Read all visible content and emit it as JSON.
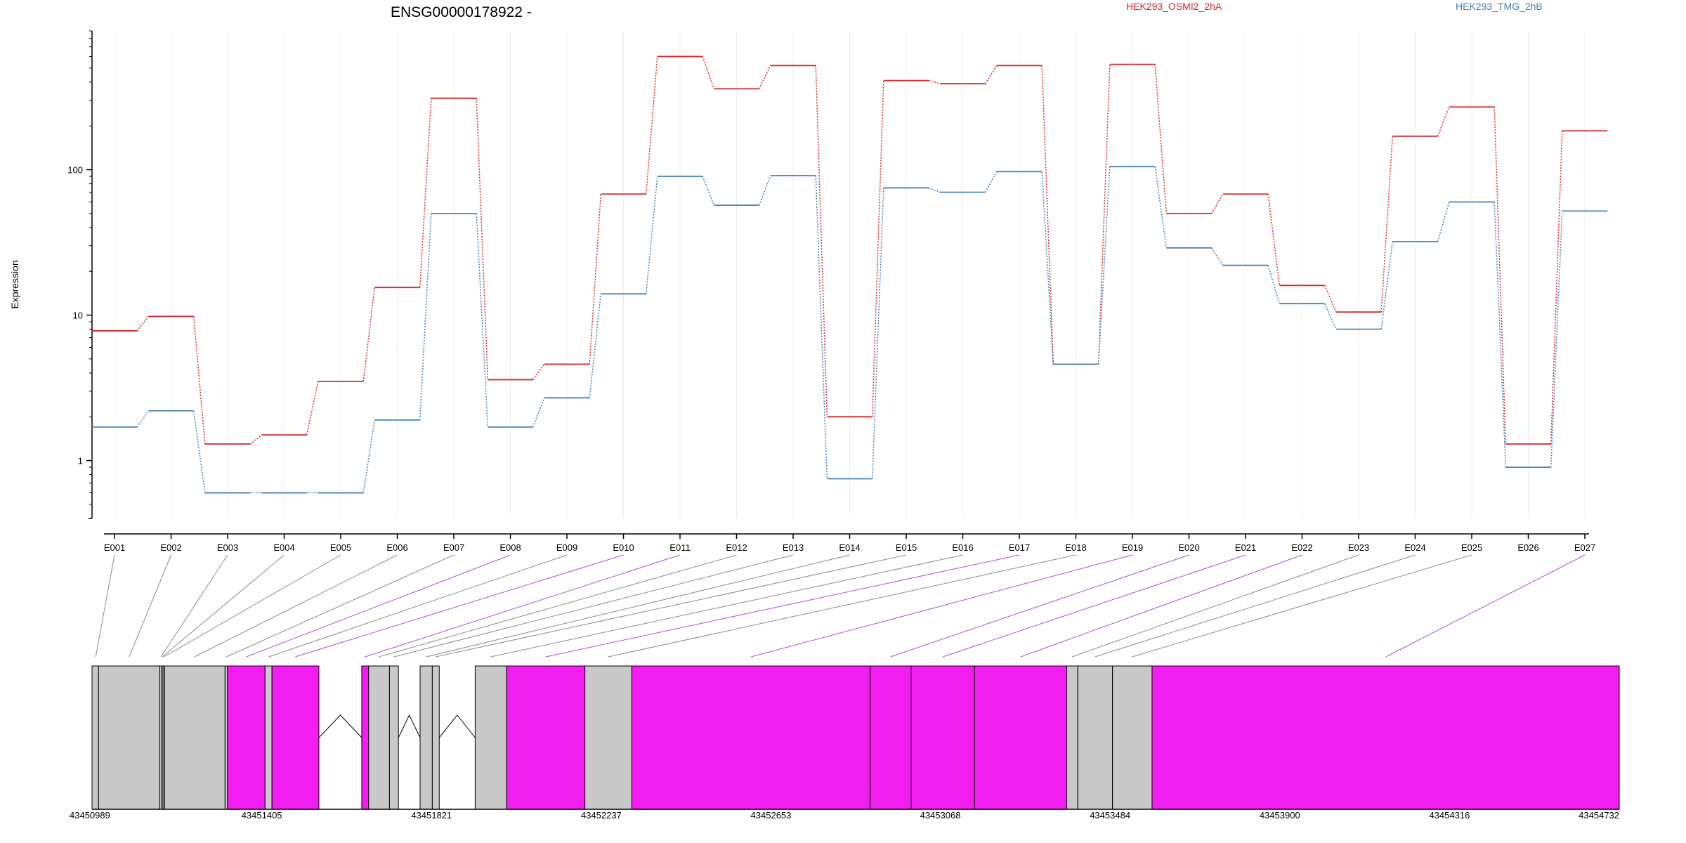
{
  "chart_data": {
    "type": "line",
    "title": "ENSG00000178922 -",
    "ylabel": "Expression",
    "yscale": "log",
    "ylim": [
      0.4,
      900
    ],
    "yticks": [
      1,
      10,
      100
    ],
    "ytick_labels": [
      "1",
      "10",
      "100"
    ],
    "grid": "vertical",
    "categories": [
      "E001",
      "E002",
      "E003",
      "E004",
      "E005",
      "E006",
      "E007",
      "E008",
      "E009",
      "E010",
      "E011",
      "E012",
      "E013",
      "E014",
      "E015",
      "E016",
      "E017",
      "E018",
      "E019",
      "E020",
      "E021",
      "E022",
      "E023",
      "E024",
      "E025",
      "E026",
      "E027"
    ],
    "series": [
      {
        "name": "HEK293_OSMI2_2hA",
        "color": "#d62728",
        "values": [
          7.8,
          9.8,
          1.3,
          1.5,
          3.5,
          15.5,
          310,
          3.6,
          4.6,
          68,
          600,
          360,
          520,
          2.0,
          410,
          390,
          520,
          4.6,
          530,
          50,
          68,
          16,
          10.5,
          170,
          270,
          1.3,
          185
        ]
      },
      {
        "name": "HEK293_TMG_2hB",
        "color": "#4682b4",
        "values": [
          1.7,
          2.2,
          0.6,
          0.6,
          0.6,
          1.9,
          50,
          1.7,
          2.7,
          14,
          90,
          57,
          91,
          0.75,
          75,
          70,
          97,
          4.6,
          105,
          29,
          22,
          12,
          8.0,
          32,
          60,
          0.9,
          52
        ]
      }
    ],
    "legend_placement": "top",
    "gene_track": {
      "coordinate_labels": [
        "43450989",
        "43451405",
        "43451821",
        "43452237",
        "43452653",
        "43453068",
        "43453484",
        "43453900",
        "43454316",
        "43454732"
      ],
      "coordinates": [
        43450989,
        43451405,
        43451821,
        43452237,
        43452653,
        43453068,
        43453484,
        43453900,
        43454316,
        43454732
      ],
      "range": [
        43450989,
        43454732
      ],
      "default_color": "#c8c8c8",
      "highlight_color": "#f21df0",
      "blocks": [
        {
          "start": 43450989,
          "end": 43451005,
          "color": "#c8c8c8"
        },
        {
          "start": 43451005,
          "end": 43451155,
          "color": "#c8c8c8"
        },
        {
          "start": 43451155,
          "end": 43451160,
          "color": "#c8c8c8"
        },
        {
          "start": 43451160,
          "end": 43451163,
          "color": "#c8c8c8"
        },
        {
          "start": 43451163,
          "end": 43451167,
          "color": "#c8c8c8"
        },
        {
          "start": 43451167,
          "end": 43451315,
          "color": "#c8c8c8"
        },
        {
          "start": 43451315,
          "end": 43451321,
          "color": "#c8c8c8"
        },
        {
          "start": 43451321,
          "end": 43451413,
          "color": "#f21df0"
        },
        {
          "start": 43451413,
          "end": 43451430,
          "color": "#c8c8c8"
        },
        {
          "start": 43451430,
          "end": 43451545,
          "color": "#f21df0"
        },
        {
          "start": 43451650,
          "end": 43451667,
          "color": "#f21df0"
        },
        {
          "start": 43451667,
          "end": 43451718,
          "color": "#c8c8c8"
        },
        {
          "start": 43451718,
          "end": 43451740,
          "color": "#c8c8c8"
        },
        {
          "start": 43451793,
          "end": 43451823,
          "color": "#c8c8c8"
        },
        {
          "start": 43451823,
          "end": 43451840,
          "color": "#c8c8c8"
        },
        {
          "start": 43451928,
          "end": 43452005,
          "color": "#c8c8c8"
        },
        {
          "start": 43452005,
          "end": 43452197,
          "color": "#f21df0"
        },
        {
          "start": 43452197,
          "end": 43452312,
          "color": "#c8c8c8"
        },
        {
          "start": 43452312,
          "end": 43452896,
          "color": "#f21df0"
        },
        {
          "start": 43452896,
          "end": 43452997,
          "color": "#f21df0"
        },
        {
          "start": 43452997,
          "end": 43453152,
          "color": "#f21df0"
        },
        {
          "start": 43453152,
          "end": 43453378,
          "color": "#f21df0"
        },
        {
          "start": 43453378,
          "end": 43453405,
          "color": "#c8c8c8"
        },
        {
          "start": 43453405,
          "end": 43453490,
          "color": "#c8c8c8"
        },
        {
          "start": 43453490,
          "end": 43453587,
          "color": "#c8c8c8"
        },
        {
          "start": 43453587,
          "end": 43454732,
          "color": "#f21df0"
        }
      ],
      "introns": [
        [
          43451545,
          43451650
        ],
        [
          43451740,
          43451793
        ],
        [
          43451840,
          43451928
        ]
      ],
      "connectors": [
        {
          "exon": "E001",
          "coord": 43450998,
          "color": "gray"
        },
        {
          "exon": "E002",
          "coord": 43451080,
          "color": "gray"
        },
        {
          "exon": "E003",
          "coord": 43451158,
          "color": "gray"
        },
        {
          "exon": "E004",
          "coord": 43451161,
          "color": "gray"
        },
        {
          "exon": "E005",
          "coord": 43451165,
          "color": "gray"
        },
        {
          "exon": "E006",
          "coord": 43451240,
          "color": "gray"
        },
        {
          "exon": "E007",
          "coord": 43451318,
          "color": "gray"
        },
        {
          "exon": "E008",
          "coord": 43451367,
          "color": "purple"
        },
        {
          "exon": "E009",
          "coord": 43451422,
          "color": "gray"
        },
        {
          "exon": "E010",
          "coord": 43451487,
          "color": "purple"
        },
        {
          "exon": "E011",
          "coord": 43451658,
          "color": "purple"
        },
        {
          "exon": "E012",
          "coord": 43451692,
          "color": "gray"
        },
        {
          "exon": "E013",
          "coord": 43451729,
          "color": "gray"
        },
        {
          "exon": "E014",
          "coord": 43451808,
          "color": "gray"
        },
        {
          "exon": "E015",
          "coord": 43451831,
          "color": "gray"
        },
        {
          "exon": "E016",
          "coord": 43451966,
          "color": "gray"
        },
        {
          "exon": "E017",
          "coord": 43452101,
          "color": "purple"
        },
        {
          "exon": "E018",
          "coord": 43452254,
          "color": "gray"
        },
        {
          "exon": "E019",
          "coord": 43452604,
          "color": "purple"
        },
        {
          "exon": "E020",
          "coord": 43452946,
          "color": "purple"
        },
        {
          "exon": "E021",
          "coord": 43453074,
          "color": "purple"
        },
        {
          "exon": "E022",
          "coord": 43453265,
          "color": "purple"
        },
        {
          "exon": "E023",
          "coord": 43453391,
          "color": "gray"
        },
        {
          "exon": "E024",
          "coord": 43453447,
          "color": "gray"
        },
        {
          "exon": "E025",
          "coord": 43453538,
          "color": "gray"
        },
        {
          "exon": "E027",
          "coord": 43454160,
          "color": "purple"
        }
      ]
    }
  }
}
